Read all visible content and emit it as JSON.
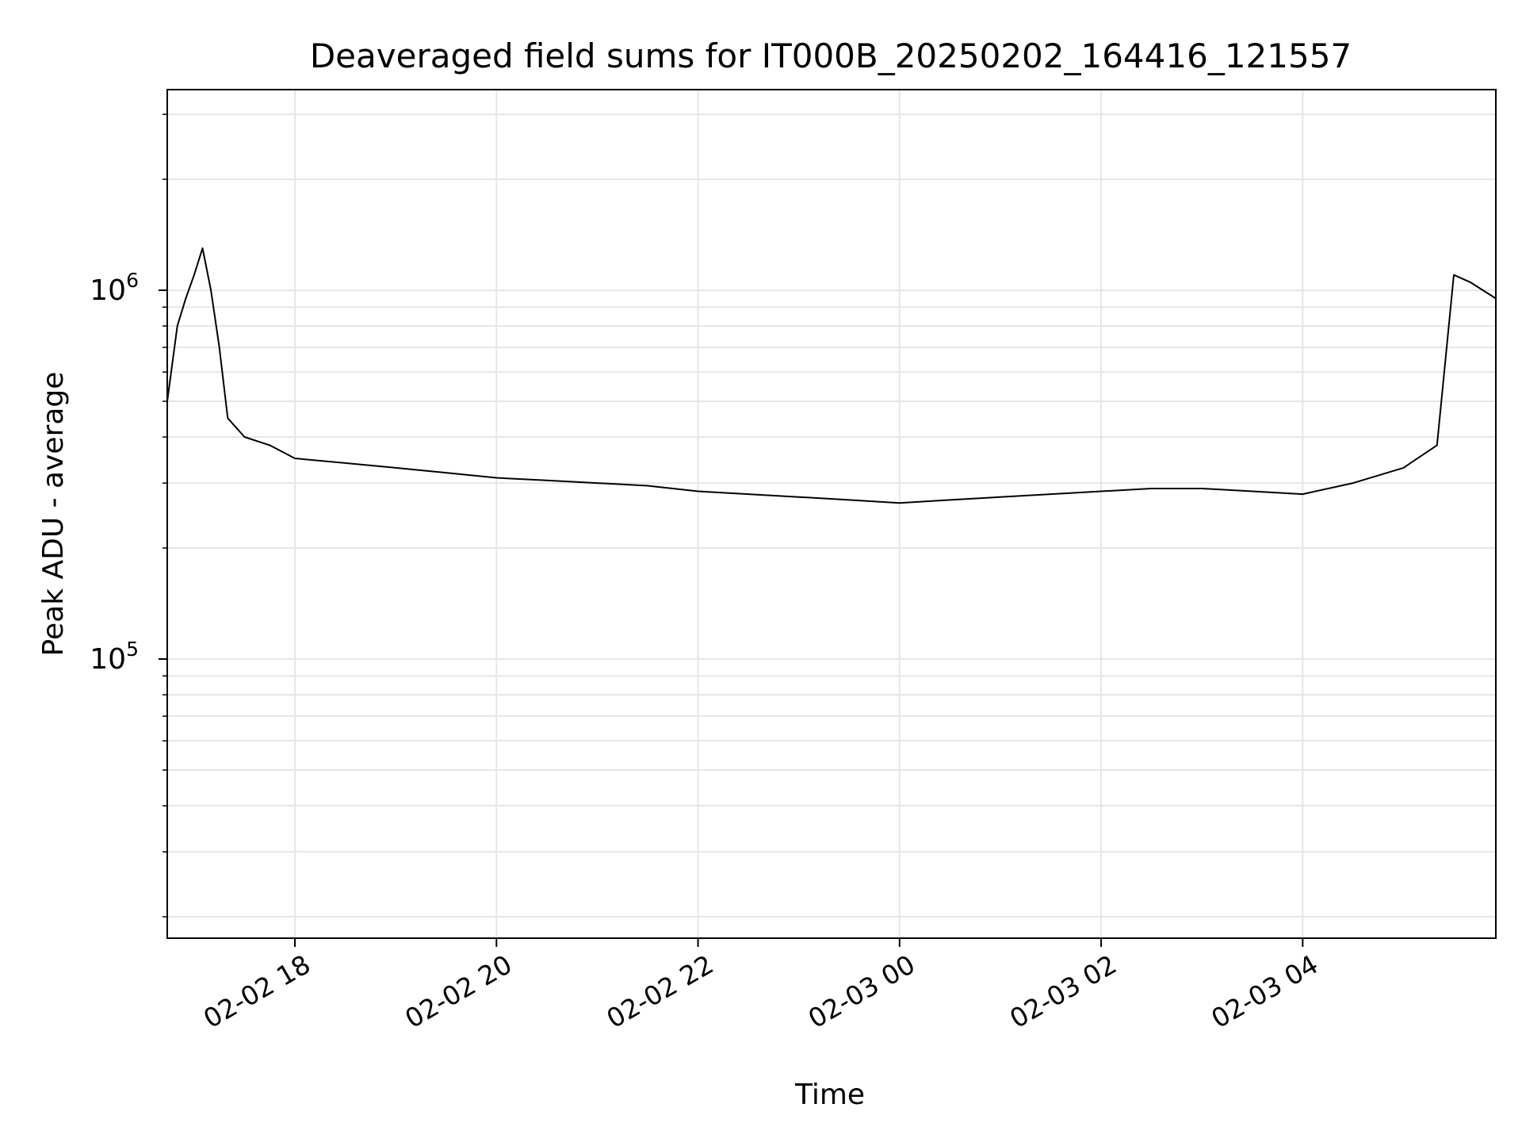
{
  "chart_data": {
    "type": "line",
    "title": "Deaveraged field sums for IT000B_20250202_164416_121557",
    "xlabel": "Time",
    "ylabel": "Peak ADU - average",
    "yscale": "log",
    "ylim": [
      17500,
      3500000
    ],
    "xlim": [
      "2025-02-02 16:44",
      "2025-02-03 05:55"
    ],
    "grid": true,
    "line_color": "#000000",
    "grid_color": "#e6e6e6",
    "xticks": [
      {
        "t": "2025-02-02 18:00",
        "label": "02-02 18"
      },
      {
        "t": "2025-02-02 20:00",
        "label": "02-02 20"
      },
      {
        "t": "2025-02-02 22:00",
        "label": "02-02 22"
      },
      {
        "t": "2025-02-03 00:00",
        "label": "02-03 00"
      },
      {
        "t": "2025-02-03 02:00",
        "label": "02-03 02"
      },
      {
        "t": "2025-02-03 04:00",
        "label": "02-03 04"
      }
    ],
    "yticks": [
      {
        "value": 100000,
        "base": "10",
        "exp": "5"
      },
      {
        "value": 1000000,
        "base": "10",
        "exp": "6"
      }
    ],
    "series": [
      {
        "points": [
          [
            "2025-02-02 16:44",
            500000
          ],
          [
            "2025-02-02 16:50",
            800000
          ],
          [
            "2025-02-02 16:55",
            950000
          ],
          [
            "2025-02-02 17:00",
            1100000
          ],
          [
            "2025-02-02 17:05",
            1300000
          ],
          [
            "2025-02-02 17:10",
            1000000
          ],
          [
            "2025-02-02 17:15",
            700000
          ],
          [
            "2025-02-02 17:20",
            450000
          ],
          [
            "2025-02-02 17:30",
            400000
          ],
          [
            "2025-02-02 17:45",
            380000
          ],
          [
            "2025-02-02 18:00",
            350000
          ],
          [
            "2025-02-02 18:30",
            340000
          ],
          [
            "2025-02-02 19:00",
            330000
          ],
          [
            "2025-02-02 19:30",
            320000
          ],
          [
            "2025-02-02 20:00",
            310000
          ],
          [
            "2025-02-02 20:30",
            305000
          ],
          [
            "2025-02-02 21:00",
            300000
          ],
          [
            "2025-02-02 21:30",
            295000
          ],
          [
            "2025-02-02 22:00",
            285000
          ],
          [
            "2025-02-02 22:30",
            280000
          ],
          [
            "2025-02-02 23:00",
            275000
          ],
          [
            "2025-02-02 23:30",
            270000
          ],
          [
            "2025-02-03 00:00",
            265000
          ],
          [
            "2025-02-03 00:30",
            270000
          ],
          [
            "2025-02-03 01:00",
            275000
          ],
          [
            "2025-02-03 01:30",
            280000
          ],
          [
            "2025-02-03 02:00",
            285000
          ],
          [
            "2025-02-03 02:30",
            290000
          ],
          [
            "2025-02-03 03:00",
            290000
          ],
          [
            "2025-02-03 03:30",
            285000
          ],
          [
            "2025-02-03 04:00",
            280000
          ],
          [
            "2025-02-03 04:30",
            300000
          ],
          [
            "2025-02-03 05:00",
            330000
          ],
          [
            "2025-02-03 05:20",
            380000
          ],
          [
            "2025-02-03 05:30",
            1100000
          ],
          [
            "2025-02-03 05:40",
            1050000
          ],
          [
            "2025-02-03 05:55",
            950000
          ]
        ]
      }
    ]
  }
}
